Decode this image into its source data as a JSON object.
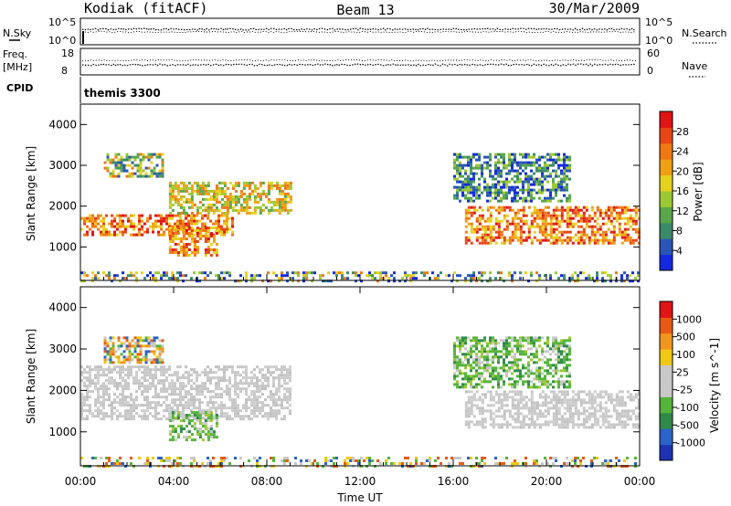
{
  "header": {
    "station": "Kodiak (fitACF)",
    "beam": "Beam 13",
    "date": "30/Mar/2009"
  },
  "status_panels": {
    "nsky": {
      "label": "N.Sky",
      "tick_top": "10^5",
      "tick_bottom": "10^0"
    },
    "nsearch": {
      "label": "N.Search",
      "tick_top": "10^5",
      "tick_bottom": "10^0"
    },
    "freq": {
      "label_line1": "Freq.",
      "label_line2": "[MHz]",
      "tick_top": "18",
      "tick_bottom": "8"
    },
    "nave": {
      "label": "Nave",
      "tick_top": "60",
      "tick_bottom": "0"
    },
    "cpid": {
      "label": "CPID",
      "value": "themis 3300"
    }
  },
  "chart_data": [
    {
      "type": "heatmap",
      "panel": "power",
      "ylabel": "Slant Range [km]",
      "ylim": [
        180,
        4500
      ],
      "yticks": [
        "1000",
        "2000",
        "3000",
        "4000"
      ],
      "xlim_hours": [
        0,
        24
      ],
      "colorbar": {
        "label": "Power [dB]",
        "ticks": [
          "4",
          "8",
          "12",
          "16",
          "20",
          "24",
          "28"
        ],
        "colors": [
          "#1428e0",
          "#2a55b8",
          "#3a8a6a",
          "#5aa64a",
          "#9cc832",
          "#e6d21e",
          "#f0a014",
          "#f07814",
          "#e84614",
          "#e01414"
        ]
      },
      "regions": [
        {
          "t0": 0.0,
          "t1": 6.5,
          "r0": 1300,
          "r1": 1800,
          "level": "high"
        },
        {
          "t0": 3.8,
          "t1": 9.0,
          "r0": 1800,
          "r1": 2600,
          "level": "mid"
        },
        {
          "t0": 1.0,
          "t1": 3.5,
          "r0": 2700,
          "r1": 3300,
          "level": "mixed"
        },
        {
          "t0": 3.8,
          "t1": 5.8,
          "r0": 800,
          "r1": 1500,
          "level": "high"
        },
        {
          "t0": 16.5,
          "t1": 24.0,
          "r0": 1100,
          "r1": 2000,
          "level": "high"
        },
        {
          "t0": 16.0,
          "t1": 21.0,
          "r0": 2100,
          "r1": 3300,
          "level": "low"
        },
        {
          "t0": 0.0,
          "t1": 24.0,
          "r0": 180,
          "r1": 400,
          "level": "noise"
        }
      ]
    },
    {
      "type": "heatmap",
      "panel": "velocity",
      "ylabel": "Slant Range [km]",
      "ylim": [
        180,
        4500
      ],
      "yticks": [
        "1000",
        "2000",
        "3000",
        "4000"
      ],
      "xlim_hours": [
        0,
        24
      ],
      "colorbar": {
        "label": "Velocity [m s^-1]",
        "ticks": [
          "1000",
          "500",
          "100",
          "25",
          "-25",
          "-100",
          "-500",
          "-1000"
        ],
        "colors": [
          "#1e32b4",
          "#2b63c8",
          "#2f8a4a",
          "#55b43a",
          "#c8c8c8",
          "#c8c8c8",
          "#f0c814",
          "#f0961e",
          "#e85a14",
          "#e01414"
        ]
      },
      "regions": [
        {
          "t0": 0.0,
          "t1": 9.0,
          "r0": 1300,
          "r1": 2600,
          "level": "ground"
        },
        {
          "t0": 1.0,
          "t1": 3.5,
          "r0": 2700,
          "r1": 3300,
          "level": "mixed"
        },
        {
          "t0": 3.8,
          "t1": 5.8,
          "r0": 800,
          "r1": 1500,
          "level": "green"
        },
        {
          "t0": 16.5,
          "t1": 24.0,
          "r0": 1100,
          "r1": 2000,
          "level": "ground"
        },
        {
          "t0": 16.0,
          "t1": 21.0,
          "r0": 2100,
          "r1": 3300,
          "level": "green"
        },
        {
          "t0": 0.0,
          "t1": 24.0,
          "r0": 180,
          "r1": 400,
          "level": "noise"
        }
      ]
    }
  ],
  "x_axis": {
    "label": "Time UT",
    "ticks": [
      "00:00",
      "04:00",
      "08:00",
      "12:00",
      "16:00",
      "20:00",
      "00:00"
    ]
  }
}
